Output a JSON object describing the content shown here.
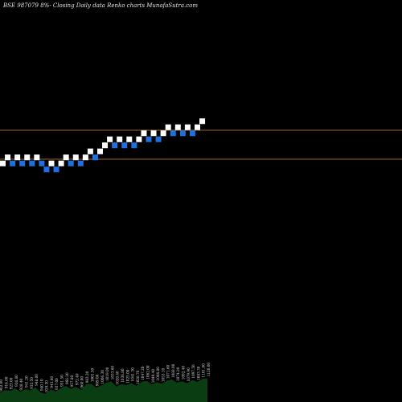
{
  "chart_data": {
    "type": "renko",
    "title": "BSE 987079 8%-  Closing Daily data  Renko  charts MunafaSutra.com",
    "colors": {
      "background": "#000000",
      "up_brick": "#ffffff",
      "down_brick": "#1f6fe0",
      "level_line": "#a0661a",
      "volume_fill": "#0b3d12"
    },
    "levels": [
      {
        "y": 162
      },
      {
        "y": 198
      }
    ],
    "bricks": [
      {
        "x": 0,
        "y": 0,
        "dir": "up"
      },
      {
        "x": 1,
        "y": 1,
        "dir": "up"
      },
      {
        "x": 2,
        "y": 0,
        "dir": "down"
      },
      {
        "x": 3,
        "y": 1,
        "dir": "up"
      },
      {
        "x": 4,
        "y": 0,
        "dir": "down"
      },
      {
        "x": 5,
        "y": 1,
        "dir": "up"
      },
      {
        "x": 6,
        "y": 0,
        "dir": "down"
      },
      {
        "x": 7,
        "y": 1,
        "dir": "up"
      },
      {
        "x": 8,
        "y": 0,
        "dir": "down"
      },
      {
        "x": 9,
        "y": -1,
        "dir": "down"
      },
      {
        "x": 10,
        "y": 0,
        "dir": "up"
      },
      {
        "x": 11,
        "y": -1,
        "dir": "down"
      },
      {
        "x": 12,
        "y": 0,
        "dir": "up"
      },
      {
        "x": 13,
        "y": 1,
        "dir": "up"
      },
      {
        "x": 14,
        "y": 0,
        "dir": "down"
      },
      {
        "x": 15,
        "y": 1,
        "dir": "up"
      },
      {
        "x": 16,
        "y": 0,
        "dir": "down"
      },
      {
        "x": 17,
        "y": 1,
        "dir": "up"
      },
      {
        "x": 18,
        "y": 2,
        "dir": "up"
      },
      {
        "x": 19,
        "y": 1,
        "dir": "down"
      },
      {
        "x": 20,
        "y": 2,
        "dir": "up"
      },
      {
        "x": 21,
        "y": 3,
        "dir": "up"
      },
      {
        "x": 22,
        "y": 4,
        "dir": "up"
      },
      {
        "x": 23,
        "y": 3,
        "dir": "down"
      },
      {
        "x": 24,
        "y": 4,
        "dir": "up"
      },
      {
        "x": 25,
        "y": 3,
        "dir": "down"
      },
      {
        "x": 26,
        "y": 4,
        "dir": "up"
      },
      {
        "x": 27,
        "y": 3,
        "dir": "down"
      },
      {
        "x": 28,
        "y": 4,
        "dir": "up"
      },
      {
        "x": 29,
        "y": 5,
        "dir": "up"
      },
      {
        "x": 30,
        "y": 4,
        "dir": "down"
      },
      {
        "x": 31,
        "y": 5,
        "dir": "up"
      },
      {
        "x": 32,
        "y": 4,
        "dir": "down"
      },
      {
        "x": 33,
        "y": 5,
        "dir": "up"
      },
      {
        "x": 34,
        "y": 6,
        "dir": "up"
      },
      {
        "x": 35,
        "y": 5,
        "dir": "down"
      },
      {
        "x": 36,
        "y": 6,
        "dir": "up"
      },
      {
        "x": 37,
        "y": 5,
        "dir": "down"
      },
      {
        "x": 38,
        "y": 6,
        "dir": "up"
      },
      {
        "x": 39,
        "y": 5,
        "dir": "down"
      },
      {
        "x": 40,
        "y": 6,
        "dir": "up"
      },
      {
        "x": 41,
        "y": 7,
        "dir": "up"
      }
    ],
    "volume": [
      20,
      26,
      24,
      30,
      22,
      28,
      25,
      32,
      21,
      18,
      27,
      23,
      30,
      35,
      29,
      33,
      27,
      38,
      40,
      31,
      36,
      42,
      45,
      34,
      39,
      37,
      41,
      35,
      44,
      46,
      38,
      43,
      40,
      47,
      49,
      42,
      45,
      41,
      48,
      44,
      50,
      52
    ],
    "volume_labels": [
      "902.00",
      "916.60",
      "923.00",
      "936.80",
      "928.40",
      "941.20",
      "935.50",
      "948.00",
      "940.10",
      "929.30",
      "943.60",
      "937.00",
      "951.50",
      "966.20",
      "957.80",
      "972.40",
      "960.00",
      "983.20",
      "1001.50",
      "989.00",
      "1006.30",
      "1019.00",
      "1033.60",
      "1020.40",
      "1036.80",
      "1025.00",
      "1041.30",
      "1028.70",
      "1047.20",
      "1062.00",
      "1049.40",
      "1066.80",
      "1053.10",
      "1071.60",
      "1088.00",
      "1074.20",
      "1092.40",
      "1079.90",
      "1097.50",
      "1083.30",
      "1101.80",
      "1120.00"
    ]
  }
}
